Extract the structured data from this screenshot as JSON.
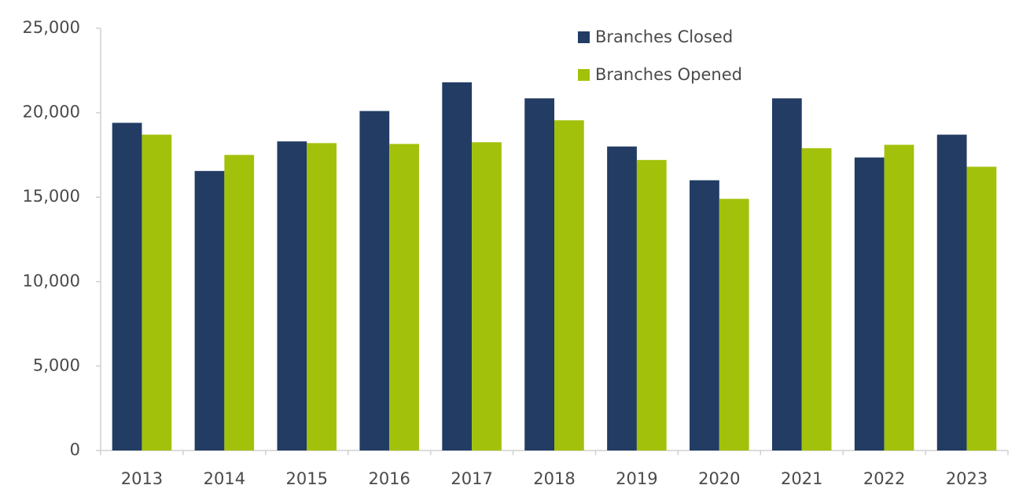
{
  "chart_data": {
    "type": "bar",
    "categories": [
      "2013",
      "2014",
      "2015",
      "2016",
      "2017",
      "2018",
      "2019",
      "2020",
      "2021",
      "2022",
      "2023"
    ],
    "series": [
      {
        "name": "Branches Closed",
        "color": "#223c64",
        "values": [
          19400,
          16550,
          18300,
          20100,
          21800,
          20850,
          18000,
          16000,
          20850,
          17350,
          18700
        ]
      },
      {
        "name": "Branches Opened",
        "color": "#a2c10a",
        "values": [
          18700,
          17500,
          18200,
          18150,
          18250,
          19550,
          17200,
          14900,
          17900,
          18100,
          16800
        ]
      }
    ],
    "ylim": [
      0,
      25000
    ],
    "yticks": [
      0,
      {
        "value": 5000,
        "label": "5,000"
      },
      {
        "value": 10000,
        "label": "10,000"
      },
      {
        "value": 15000,
        "label": "15,000"
      },
      {
        "value": 20000,
        "label": "20,000"
      },
      {
        "value": 25000,
        "label": "25,000"
      }
    ],
    "grid": false,
    "legend": "top"
  }
}
